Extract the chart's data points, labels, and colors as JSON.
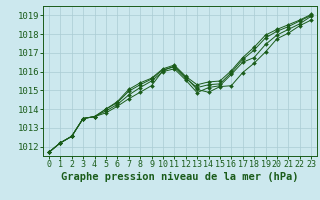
{
  "background_color": "#cce8ee",
  "plot_bg_color": "#cce8ee",
  "grid_color": "#aaccd4",
  "line_color": "#1a5c1a",
  "marker_color": "#1a5c1a",
  "xlabel": "Graphe pression niveau de la mer (hPa)",
  "xlabel_fontsize": 7.5,
  "xtick_fontsize": 6,
  "ytick_fontsize": 6.5,
  "xlim": [
    -0.5,
    23.5
  ],
  "ylim": [
    1011.5,
    1019.5
  ],
  "yticks": [
    1012,
    1013,
    1014,
    1015,
    1016,
    1017,
    1018,
    1019
  ],
  "xticks": [
    0,
    1,
    2,
    3,
    4,
    5,
    6,
    7,
    8,
    9,
    10,
    11,
    12,
    13,
    14,
    15,
    16,
    17,
    18,
    19,
    20,
    21,
    22,
    23
  ],
  "series": [
    [
      1011.7,
      1012.2,
      1012.55,
      1013.5,
      1013.6,
      1013.8,
      1014.15,
      1014.55,
      1014.9,
      1015.25,
      1016.05,
      1016.3,
      1015.7,
      1015.05,
      1014.9,
      1015.2,
      1015.25,
      1015.95,
      1016.45,
      1017.05,
      1017.75,
      1018.05,
      1018.45,
      1018.75
    ],
    [
      1011.7,
      1012.2,
      1012.55,
      1013.5,
      1013.6,
      1013.9,
      1014.25,
      1014.75,
      1015.15,
      1015.5,
      1016.0,
      1016.15,
      1015.55,
      1014.88,
      1015.15,
      1015.25,
      1015.85,
      1016.5,
      1016.75,
      1017.45,
      1017.95,
      1018.25,
      1018.55,
      1018.95
    ],
    [
      1011.7,
      1012.2,
      1012.55,
      1013.5,
      1013.6,
      1014.0,
      1014.35,
      1014.95,
      1015.3,
      1015.6,
      1016.1,
      1016.25,
      1015.65,
      1015.15,
      1015.3,
      1015.35,
      1015.95,
      1016.65,
      1017.15,
      1017.8,
      1018.15,
      1018.4,
      1018.7,
      1019.0
    ],
    [
      1011.7,
      1012.2,
      1012.55,
      1013.5,
      1013.6,
      1014.0,
      1014.4,
      1015.05,
      1015.4,
      1015.65,
      1016.15,
      1016.35,
      1015.75,
      1015.3,
      1015.45,
      1015.5,
      1016.05,
      1016.75,
      1017.3,
      1017.95,
      1018.25,
      1018.5,
      1018.75,
      1019.05
    ]
  ]
}
